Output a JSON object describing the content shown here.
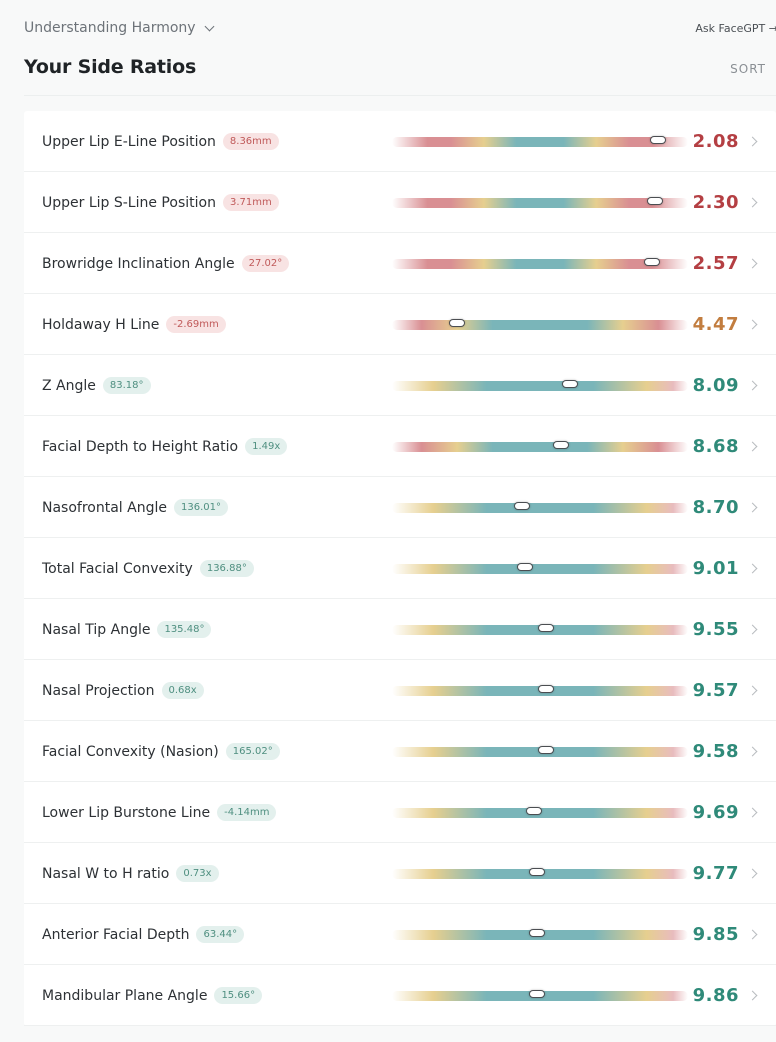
{
  "topbar": {
    "section": "Understanding Harmony",
    "ask": "Ask FaceGPT →"
  },
  "header": {
    "title": "Your Side Ratios",
    "sort": "SORT"
  },
  "colors": {
    "red": "#d98f93",
    "yellow": "#e6cf8f",
    "teal": "#7ab5b9",
    "score_red": "#b43f43",
    "score_orange": "#c27d3f",
    "score_green": "#2f8a79"
  },
  "ratios": [
    {
      "name": "Upper Lip E-Line Position",
      "value": "8.36mm",
      "score": "2.08",
      "level": "red",
      "grad": "wide",
      "marker": 0.9
    },
    {
      "name": "Upper Lip S-Line Position",
      "value": "3.71mm",
      "score": "2.30",
      "level": "red",
      "grad": "wide",
      "marker": 0.89
    },
    {
      "name": "Browridge Inclination Angle",
      "value": "27.02°",
      "score": "2.57",
      "level": "red",
      "grad": "wide",
      "marker": 0.88
    },
    {
      "name": "Holdaway H Line",
      "value": "-2.69mm",
      "score": "4.47",
      "level": "orange",
      "grad": "mid",
      "marker": 0.22
    },
    {
      "name": "Z Angle",
      "value": "83.18°",
      "score": "8.09",
      "level": "green",
      "grad": "soft",
      "marker": 0.6
    },
    {
      "name": "Facial Depth to Height Ratio",
      "value": "1.49x",
      "score": "8.68",
      "level": "green",
      "grad": "mid",
      "marker": 0.57
    },
    {
      "name": "Nasofrontal Angle",
      "value": "136.01°",
      "score": "8.70",
      "level": "green",
      "grad": "soft",
      "marker": 0.44
    },
    {
      "name": "Total Facial Convexity",
      "value": "136.88°",
      "score": "9.01",
      "level": "green",
      "grad": "soft",
      "marker": 0.45
    },
    {
      "name": "Nasal Tip Angle",
      "value": "135.48°",
      "score": "9.55",
      "level": "green",
      "grad": "soft",
      "marker": 0.52
    },
    {
      "name": "Nasal Projection",
      "value": "0.68x",
      "score": "9.57",
      "level": "green",
      "grad": "soft",
      "marker": 0.52
    },
    {
      "name": "Facial Convexity (Nasion)",
      "value": "165.02°",
      "score": "9.58",
      "level": "green",
      "grad": "soft",
      "marker": 0.52
    },
    {
      "name": "Lower Lip Burstone Line",
      "value": "-4.14mm",
      "score": "9.69",
      "level": "green",
      "grad": "soft",
      "marker": 0.48
    },
    {
      "name": "Nasal W to H ratio",
      "value": "0.73x",
      "score": "9.77",
      "level": "green",
      "grad": "soft",
      "marker": 0.49
    },
    {
      "name": "Anterior Facial Depth",
      "value": "63.44°",
      "score": "9.85",
      "level": "green",
      "grad": "soft",
      "marker": 0.49
    },
    {
      "name": "Mandibular Plane Angle",
      "value": "15.66°",
      "score": "9.86",
      "level": "green",
      "grad": "soft",
      "marker": 0.49
    }
  ]
}
